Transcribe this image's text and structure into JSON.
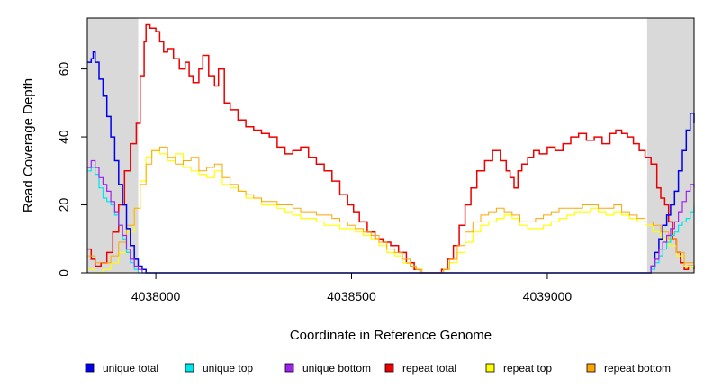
{
  "chart_data": {
    "type": "line",
    "title": "",
    "xlabel": "Coordinate in Reference Genome",
    "ylabel": "Read Coverage Depth",
    "xlim": [
      4037825,
      4039375
    ],
    "ylim": [
      0,
      75
    ],
    "x_ticks": [
      4038000,
      4038500,
      4039000
    ],
    "x_tick_labels": [
      "4038000",
      "4038500",
      "4039000"
    ],
    "y_ticks": [
      0,
      20,
      40,
      60
    ],
    "y_tick_labels": [
      "0",
      "20",
      "40",
      "60"
    ],
    "shaded_regions": [
      {
        "x0": 4037825,
        "x1": 4037955,
        "color": "#d9d9d9"
      },
      {
        "x0": 4039255,
        "x1": 4039375,
        "color": "#d9d9d9"
      }
    ],
    "legend_position": "bottom",
    "legend": [
      {
        "label": "unique total",
        "color": "#0000ee"
      },
      {
        "label": "unique top",
        "color": "#00e5ee"
      },
      {
        "label": "unique bottom",
        "color": "#a020f0"
      },
      {
        "label": "repeat total",
        "color": "#ee0000"
      },
      {
        "label": "repeat top",
        "color": "#ffff00"
      },
      {
        "label": "repeat bottom",
        "color": "#ffa500"
      }
    ],
    "series": [
      {
        "name": "repeat total",
        "color": "#ee0000",
        "width": 1.5,
        "x": [
          4037825,
          4037835,
          4037845,
          4037860,
          4037875,
          4037890,
          4037905,
          4037920,
          4037935,
          4037950,
          4037960,
          4037970,
          4037975,
          4037985,
          4038000,
          4038010,
          4038020,
          4038030,
          4038045,
          4038060,
          4038075,
          4038085,
          4038095,
          4038110,
          4038120,
          4038135,
          4038150,
          4038160,
          4038175,
          4038190,
          4038210,
          4038230,
          4038250,
          4038270,
          4038290,
          4038310,
          4038330,
          4038350,
          4038370,
          4038390,
          4038410,
          4038430,
          4038450,
          4038470,
          4038490,
          4038505,
          4038520,
          4038540,
          4038560,
          4038580,
          4038600,
          4038620,
          4038640,
          4038660,
          4038675,
          4038690,
          4038705,
          4038720,
          4038730,
          4038745,
          4038760,
          4038775,
          4038790,
          4038805,
          4038820,
          4038840,
          4038860,
          4038880,
          4038895,
          4038905,
          4038915,
          4038925,
          4038935,
          4038950,
          4038965,
          4038980,
          4039000,
          4039020,
          4039040,
          4039060,
          4039080,
          4039100,
          4039120,
          4039140,
          4039160,
          4039175,
          4039190,
          4039205,
          4039220,
          4039235,
          4039250,
          4039265,
          4039280,
          4039290,
          4039300,
          4039310,
          4039320,
          4039330,
          4039340,
          4039350,
          4039360,
          4039375
        ],
        "y": [
          7,
          4,
          2,
          3,
          6,
          12,
          20,
          30,
          38,
          44,
          58,
          68,
          73,
          72,
          71,
          68,
          65,
          66,
          63,
          60,
          62,
          58,
          56,
          60,
          64,
          58,
          55,
          60,
          50,
          48,
          45,
          43,
          42,
          41,
          40,
          37,
          35,
          36,
          37,
          34,
          32,
          30,
          27,
          23,
          20,
          18,
          15,
          12,
          10,
          9,
          8,
          6,
          3,
          1,
          0,
          0,
          0,
          0,
          1,
          4,
          8,
          14,
          20,
          25,
          30,
          33,
          36,
          33,
          30,
          28,
          25,
          30,
          32,
          34,
          36,
          35,
          37,
          36,
          38,
          40,
          41,
          39,
          40,
          38,
          41,
          42,
          41,
          40,
          38,
          36,
          34,
          32,
          25,
          22,
          20,
          15,
          10,
          6,
          3,
          1,
          2,
          1
        ]
      },
      {
        "name": "repeat top",
        "color": "#ffff00",
        "width": 1.2,
        "x": [
          4037825,
          4037845,
          4037865,
          4037885,
          4037905,
          4037925,
          4037945,
          4037960,
          4037975,
          4037990,
          4038010,
          4038030,
          4038050,
          4038070,
          4038090,
          4038110,
          4038130,
          4038150,
          4038170,
          4038190,
          4038210,
          4038230,
          4038250,
          4038270,
          4038290,
          4038310,
          4038330,
          4038350,
          4038370,
          4038390,
          4038410,
          4038430,
          4038450,
          4038470,
          4038490,
          4038510,
          4038530,
          4038550,
          4038570,
          4038590,
          4038610,
          4038630,
          4038650,
          4038665,
          4038680,
          4038700,
          4038720,
          4038735,
          4038750,
          4038770,
          4038790,
          4038810,
          4038830,
          4038850,
          4038870,
          4038890,
          4038910,
          4038930,
          4038950,
          4038970,
          4038990,
          4039010,
          4039030,
          4039050,
          4039070,
          4039090,
          4039110,
          4039130,
          4039150,
          4039170,
          4039190,
          4039210,
          4039230,
          4039250,
          4039270,
          4039290,
          4039310,
          4039330,
          4039350,
          4039375
        ],
        "y": [
          1,
          0,
          1,
          3,
          6,
          12,
          19,
          27,
          34,
          36,
          35,
          33,
          35,
          31,
          30,
          29,
          28,
          30,
          26,
          25,
          24,
          22,
          22,
          20,
          20,
          19,
          18,
          17,
          16,
          16,
          15,
          14,
          14,
          13,
          13,
          12,
          11,
          10,
          8,
          6,
          5,
          3,
          2,
          1,
          0,
          0,
          0,
          1,
          3,
          6,
          9,
          12,
          14,
          15,
          16,
          17,
          16,
          14,
          13,
          13,
          14,
          15,
          16,
          17,
          18,
          18,
          19,
          18,
          17,
          18,
          17,
          16,
          15,
          14,
          12,
          10,
          8,
          5,
          2,
          0
        ],
        "offset": 0
      },
      {
        "name": "repeat bottom",
        "color": "#ffa500",
        "width": 1.0,
        "x": [
          4037825,
          4037845,
          4037865,
          4037885,
          4037905,
          4037925,
          4037945,
          4037960,
          4037975,
          4037990,
          4038010,
          4038030,
          4038050,
          4038070,
          4038090,
          4038110,
          4038130,
          4038150,
          4038170,
          4038190,
          4038210,
          4038230,
          4038250,
          4038270,
          4038290,
          4038310,
          4038330,
          4038350,
          4038370,
          4038390,
          4038410,
          4038430,
          4038450,
          4038470,
          4038490,
          4038510,
          4038530,
          4038550,
          4038570,
          4038590,
          4038610,
          4038630,
          4038650,
          4038665,
          4038680,
          4038700,
          4038720,
          4038735,
          4038750,
          4038770,
          4038790,
          4038810,
          4038830,
          4038850,
          4038870,
          4038890,
          4038910,
          4038930,
          4038950,
          4038970,
          4038990,
          4039010,
          4039030,
          4039050,
          4039070,
          4039090,
          4039110,
          4039130,
          4039150,
          4039170,
          4039190,
          4039210,
          4039230,
          4039250,
          4039270,
          4039290,
          4039310,
          4039330,
          4039350,
          4039375
        ],
        "y": [
          5,
          3,
          3,
          5,
          9,
          14,
          19,
          26,
          32,
          36,
          37,
          34,
          32,
          33,
          34,
          30,
          31,
          32,
          28,
          26,
          24,
          23,
          22,
          21,
          21,
          20,
          20,
          19,
          18,
          18,
          17,
          17,
          16,
          15,
          14,
          13,
          12,
          11,
          9,
          7,
          6,
          4,
          2,
          1,
          0,
          0,
          0,
          1,
          4,
          8,
          12,
          15,
          17,
          18,
          19,
          18,
          17,
          15,
          15,
          16,
          17,
          18,
          19,
          19,
          19,
          20,
          20,
          19,
          19,
          20,
          18,
          17,
          16,
          15,
          14,
          12,
          10,
          6,
          3,
          1
        ],
        "offset": 0
      },
      {
        "name": "unique total",
        "color": "#0000ee",
        "width": 1.5,
        "x": [
          4037825,
          4037835,
          4037840,
          4037845,
          4037855,
          4037865,
          4037875,
          4037885,
          4037895,
          4037905,
          4037915,
          4037925,
          4037935,
          4037945,
          4037955,
          4037965,
          4037975,
          4037985,
          4039255,
          4039265,
          4039275,
          4039285,
          4039295,
          4039305,
          4039315,
          4039325,
          4039335,
          4039345,
          4039355,
          4039365,
          4039375
        ],
        "y": [
          62,
          63,
          65,
          62,
          57,
          52,
          46,
          40,
          33,
          26,
          20,
          13,
          8,
          4,
          2,
          1,
          0,
          0,
          0,
          2,
          6,
          10,
          14,
          17,
          20,
          24,
          30,
          36,
          42,
          47,
          44
        ]
      },
      {
        "name": "unique top",
        "color": "#00e5ee",
        "width": 1.2,
        "x": [
          4037825,
          4037835,
          4037845,
          4037855,
          4037865,
          4037875,
          4037885,
          4037895,
          4037905,
          4037915,
          4037925,
          4037935,
          4037945,
          4037955,
          4037965,
          4037975,
          4039255,
          4039265,
          4039275,
          4039285,
          4039295,
          4039305,
          4039315,
          4039325,
          4039335,
          4039345,
          4039355,
          4039365,
          4039375
        ],
        "y": [
          30,
          31,
          29,
          25,
          22,
          21,
          20,
          17,
          14,
          10,
          6,
          3,
          1,
          0,
          0,
          0,
          0,
          1,
          3,
          5,
          7,
          9,
          11,
          12,
          14,
          15,
          16,
          18,
          20
        ]
      },
      {
        "name": "unique bottom",
        "color": "#a020f0",
        "width": 1.2,
        "x": [
          4037825,
          4037835,
          4037845,
          4037855,
          4037865,
          4037875,
          4037885,
          4037895,
          4037905,
          4037915,
          4037925,
          4037935,
          4037945,
          4037955,
          4037965,
          4037975,
          4039255,
          4039265,
          4039275,
          4039285,
          4039295,
          4039305,
          4039315,
          4039325,
          4039335,
          4039345,
          4039355,
          4039365,
          4039375
        ],
        "y": [
          31,
          33,
          31,
          28,
          26,
          24,
          21,
          18,
          14,
          11,
          7,
          4,
          2,
          1,
          0,
          0,
          0,
          2,
          4,
          7,
          9,
          11,
          13,
          15,
          18,
          21,
          24,
          26,
          25
        ]
      }
    ]
  }
}
